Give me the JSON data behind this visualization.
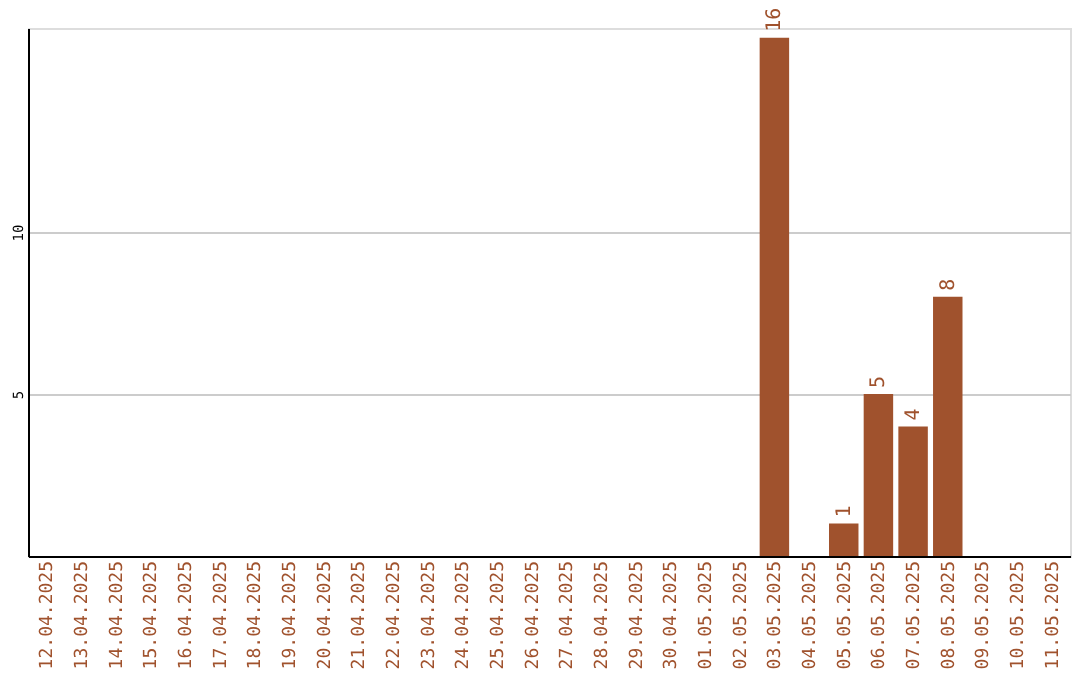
{
  "chart_data": {
    "type": "bar",
    "categories": [
      "12.04.2025",
      "13.04.2025",
      "14.04.2025",
      "15.04.2025",
      "16.04.2025",
      "17.04.2025",
      "18.04.2025",
      "19.04.2025",
      "20.04.2025",
      "21.04.2025",
      "22.04.2025",
      "23.04.2025",
      "24.04.2025",
      "25.04.2025",
      "26.04.2025",
      "27.04.2025",
      "28.04.2025",
      "29.04.2025",
      "30.04.2025",
      "01.05.2025",
      "02.05.2025",
      "03.05.2025",
      "04.05.2025",
      "05.05.2025",
      "06.05.2025",
      "07.05.2025",
      "08.05.2025",
      "09.05.2025",
      "10.05.2025",
      "11.05.2025"
    ],
    "values": [
      null,
      null,
      null,
      null,
      null,
      null,
      null,
      null,
      null,
      null,
      null,
      null,
      null,
      null,
      null,
      null,
      null,
      null,
      null,
      null,
      null,
      16,
      null,
      1,
      5,
      4,
      8,
      null,
      null,
      null
    ],
    "color": "#a0522d",
    "ylim": [
      0,
      16.3
    ],
    "yticks": [
      5,
      10
    ],
    "grid": "y",
    "data_labels": true
  }
}
